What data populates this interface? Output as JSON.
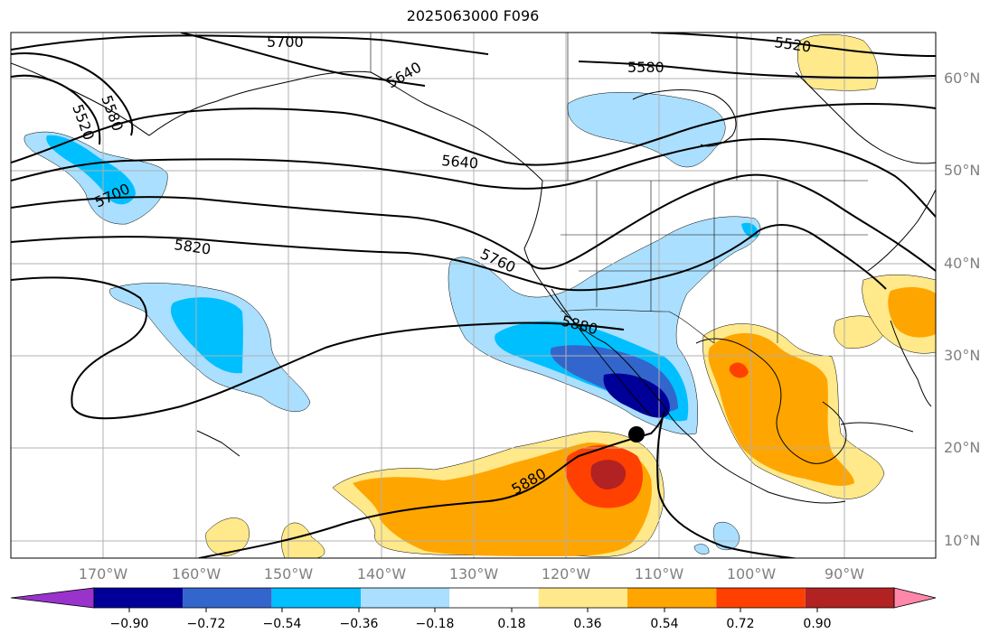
{
  "title": "2025063000 F096",
  "lat_labels": [
    "60°N",
    "50°N",
    "40°N",
    "30°N",
    "20°N",
    "10°N"
  ],
  "lon_labels": [
    "170°W",
    "160°W",
    "150°W",
    "140°W",
    "130°W",
    "120°W",
    "110°W",
    "100°W",
    "90°W"
  ],
  "contour_labels": [
    "5700",
    "5640",
    "5520",
    "5580",
    "5580",
    "5520",
    "5640",
    "5700",
    "5820",
    "5760",
    "5880",
    "5880"
  ],
  "colorbar": {
    "ticks": [
      "−0.90",
      "−0.72",
      "−0.54",
      "−0.36",
      "−0.18",
      "0.18",
      "0.36",
      "0.54",
      "0.72",
      "0.90"
    ],
    "colors": [
      "#9933cc",
      "#000099",
      "#3366cc",
      "#00bfff",
      "#aadfff",
      "#ffffff",
      "#ffe98a",
      "#ffa500",
      "#ff4000",
      "#b22222",
      "#ff88aa"
    ]
  },
  "legend": {
    "min_extension_color": "#9933cc",
    "max_extension_color": "#ff88aa"
  }
}
